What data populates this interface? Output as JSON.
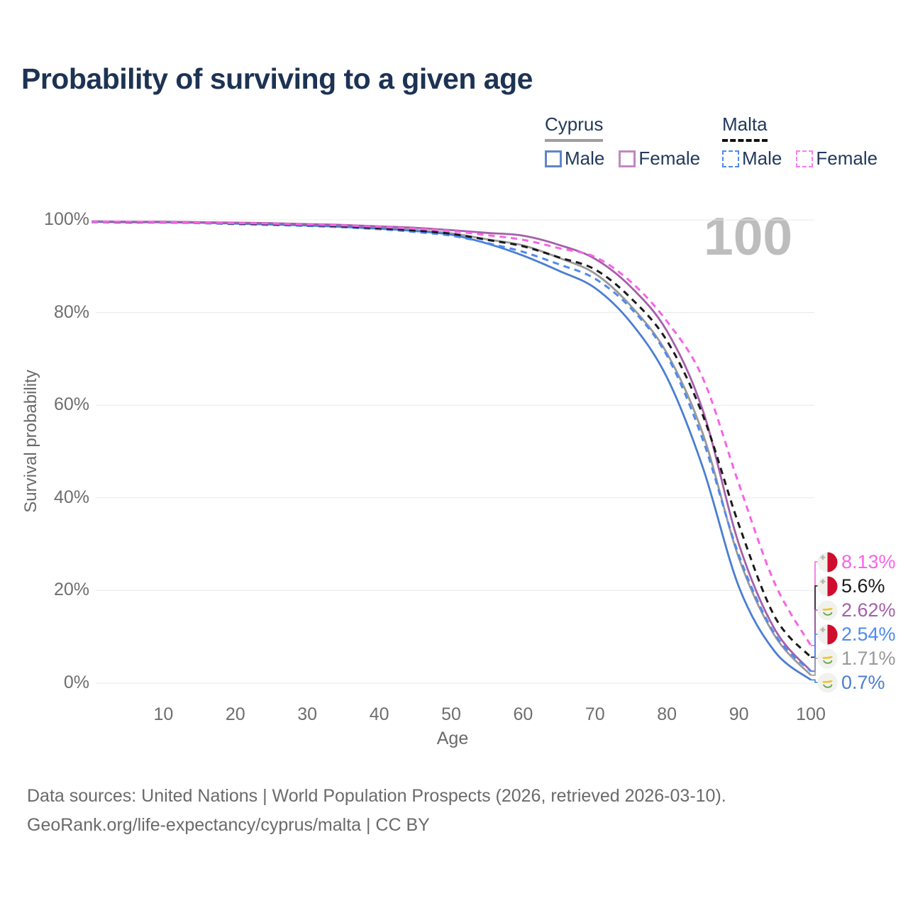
{
  "title": "Probability of surviving to a given age",
  "watermark": "100",
  "legend": {
    "groups": [
      {
        "label": "Cyprus",
        "line_style": "solid",
        "underline_color": "#9e9e9e",
        "items": [
          {
            "label": "Male",
            "color": "#5f85c8"
          },
          {
            "label": "Female",
            "color": "#c288c0"
          }
        ]
      },
      {
        "label": "Malta",
        "line_style": "dashed",
        "underline_color": "#111111",
        "items": [
          {
            "label": "Male",
            "color": "#4e8af0"
          },
          {
            "label": "Female",
            "color": "#fb7df2"
          }
        ]
      }
    ]
  },
  "chart_data": {
    "type": "line",
    "title": "Probability of surviving to a given age",
    "xlabel": "Age",
    "ylabel": "Survival probability",
    "xlim": [
      0,
      100
    ],
    "ylim": [
      0,
      100
    ],
    "grid": "horizontal",
    "x_ticks": [
      10,
      20,
      30,
      40,
      50,
      60,
      70,
      80,
      90,
      100
    ],
    "y_ticks": [
      0,
      20,
      40,
      60,
      80,
      100
    ],
    "y_tick_suffix": "%",
    "x": [
      0,
      5,
      10,
      15,
      20,
      25,
      30,
      35,
      40,
      45,
      50,
      55,
      60,
      65,
      70,
      75,
      80,
      85,
      90,
      95,
      100
    ],
    "series": [
      {
        "name": "Cyprus",
        "country": "Cyprus",
        "sex": "both",
        "color": "#999999",
        "dash": false,
        "end_label": "1.71%",
        "values": [
          99.6,
          99.6,
          99.5,
          99.4,
          99.3,
          99.1,
          98.9,
          98.6,
          98.3,
          97.8,
          97.1,
          95.8,
          94.5,
          91.8,
          88.4,
          81.4,
          71.2,
          53.8,
          27.0,
          10.2,
          1.71
        ]
      },
      {
        "name": "Cyprus Male",
        "country": "Cyprus",
        "sex": "male",
        "color": "#4a7ed2",
        "dash": false,
        "end_label": "0.7%",
        "values": [
          99.6,
          99.5,
          99.5,
          99.4,
          99.2,
          99.0,
          98.8,
          98.5,
          98.1,
          97.6,
          96.8,
          94.9,
          92.3,
          89.0,
          85.3,
          77.8,
          66.0,
          46.5,
          20.8,
          6.8,
          0.7
        ]
      },
      {
        "name": "Cyprus Female",
        "country": "Cyprus",
        "sex": "female",
        "color": "#a55fa9",
        "dash": false,
        "end_label": "2.62%",
        "values": [
          99.7,
          99.6,
          99.6,
          99.5,
          99.4,
          99.3,
          99.1,
          98.9,
          98.6,
          98.3,
          97.8,
          97.2,
          96.6,
          94.6,
          91.6,
          85.5,
          76.0,
          58.8,
          30.0,
          11.6,
          2.62
        ]
      },
      {
        "name": "Malta Male",
        "country": "Malta",
        "sex": "male",
        "color": "#4e8af0",
        "dash": true,
        "end_label": "2.54%",
        "values": [
          99.5,
          99.5,
          99.4,
          99.3,
          99.1,
          98.9,
          98.7,
          98.4,
          98.0,
          97.4,
          96.6,
          95.0,
          93.1,
          90.4,
          87.3,
          80.9,
          70.7,
          52.5,
          27.6,
          10.6,
          2.54
        ]
      },
      {
        "name": "Malta",
        "country": "Malta",
        "sex": "both",
        "color": "#1a1a1a",
        "dash": true,
        "end_label": "5.6%",
        "values": [
          99.6,
          99.5,
          99.5,
          99.4,
          99.2,
          99.1,
          98.9,
          98.6,
          98.2,
          97.7,
          97.0,
          95.7,
          94.3,
          91.9,
          89.3,
          83.1,
          73.9,
          57.8,
          34.2,
          14.3,
          5.6
        ]
      },
      {
        "name": "Malta Female",
        "country": "Malta",
        "sex": "female",
        "color": "#f763e8",
        "dash": true,
        "end_label": "8.13%",
        "values": [
          99.6,
          99.6,
          99.5,
          99.4,
          99.3,
          99.2,
          99.0,
          98.8,
          98.5,
          98.1,
          97.6,
          96.7,
          95.7,
          93.9,
          92.0,
          86.6,
          78.1,
          65.8,
          43.0,
          21.5,
          8.13
        ]
      }
    ],
    "legend_position": "top-right"
  },
  "end_labels": [
    {
      "value": "8.13%",
      "flag": "malta",
      "color": "#f763e8",
      "series_index": 5
    },
    {
      "value": "5.6%",
      "flag": "malta",
      "color": "#1a1a1a",
      "series_index": 4
    },
    {
      "value": "2.62%",
      "flag": "cyprus",
      "color": "#a55fa9",
      "series_index": 2
    },
    {
      "value": "2.54%",
      "flag": "malta",
      "color": "#4e8af0",
      "series_index": 3
    },
    {
      "value": "1.71%",
      "flag": "cyprus",
      "color": "#999999",
      "series_index": 0
    },
    {
      "value": "0.7%",
      "flag": "cyprus",
      "color": "#4a7ed2",
      "series_index": 1
    }
  ],
  "footer": {
    "line1": "Data sources: United Nations | World Population Prospects (2026, retrieved 2026-03-10).",
    "line2": "GeoRank.org/life-expectancy/cyprus/malta | CC BY"
  }
}
